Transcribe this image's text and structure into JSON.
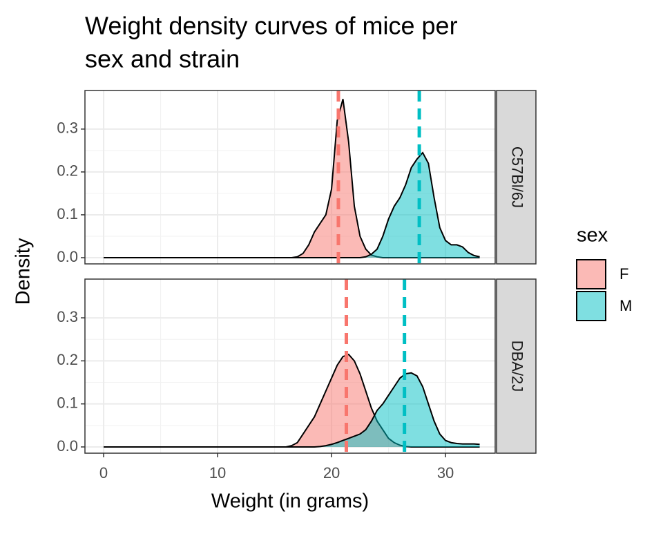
{
  "chart_data": {
    "type": "density",
    "title": [
      "Weight density curves of mice per",
      "sex and strain"
    ],
    "x_label": "Weight (in grams)",
    "y_label": "Density",
    "legend_title": "sex",
    "legend": [
      {
        "name": "F",
        "color": "#F8766D"
      },
      {
        "name": "M",
        "color": "#00BFC4"
      }
    ],
    "xlim": [
      -1.64,
      34.36
    ],
    "xticks": [
      0,
      10,
      20,
      30
    ],
    "ylim": [
      -0.0145,
      0.39
    ],
    "yticks": [
      {
        "value": 0,
        "label": "0.0"
      },
      0.1,
      0.2,
      0.3
    ],
    "grid": true,
    "x": [
      0,
      15,
      15.5,
      16,
      16.5,
      17,
      17.5,
      18,
      18.5,
      19,
      19.5,
      20,
      20.5,
      21,
      21.5,
      22,
      22.5,
      23,
      23.5,
      24,
      24.5,
      25,
      25.5,
      26,
      26.5,
      27,
      27.5,
      28,
      28.5,
      29,
      29.5,
      30,
      30.5,
      31,
      31.5,
      32,
      32.5,
      33
    ],
    "panels": [
      {
        "strip": "C57Bl/6J",
        "series": [
          {
            "name": "F",
            "color": "#F8766D",
            "mean": 20.6,
            "values": [
              0,
              0,
              0,
              0,
              0,
              0.002,
              0.01,
              0.03,
              0.06,
              0.08,
              0.1,
              0.16,
              0.32,
              0.37,
              0.27,
              0.12,
              0.05,
              0.02,
              0.006,
              0.002,
              0,
              0,
              0,
              0,
              0,
              0,
              0,
              0,
              0,
              0,
              0,
              0,
              0,
              0,
              0,
              0,
              0,
              0
            ]
          },
          {
            "name": "M",
            "color": "#00BFC4",
            "mean": 27.7,
            "values": [
              0,
              0,
              0,
              0,
              0,
              0,
              0,
              0,
              0,
              0,
              0,
              0,
              0,
              0,
              0,
              0,
              0,
              0.002,
              0.008,
              0.02,
              0.05,
              0.09,
              0.12,
              0.14,
              0.17,
              0.21,
              0.23,
              0.245,
              0.22,
              0.14,
              0.07,
              0.04,
              0.03,
              0.03,
              0.025,
              0.012,
              0.005,
              0.002
            ]
          }
        ]
      },
      {
        "strip": "DBA/2J",
        "series": [
          {
            "name": "F",
            "color": "#F8766D",
            "mean": 21.3,
            "values": [
              0,
              0,
              0,
              0,
              0.003,
              0.01,
              0.03,
              0.05,
              0.07,
              0.1,
              0.13,
              0.16,
              0.19,
              0.21,
              0.215,
              0.2,
              0.17,
              0.13,
              0.09,
              0.06,
              0.04,
              0.02,
              0.01,
              0.004,
              0.001,
              0,
              0,
              0,
              0,
              0,
              0,
              0,
              0,
              0,
              0,
              0,
              0,
              0
            ]
          },
          {
            "name": "M",
            "color": "#00BFC4",
            "mean": 26.4,
            "values": [
              0,
              0,
              0,
              0,
              0,
              0,
              0,
              0,
              0,
              0.001,
              0.003,
              0.006,
              0.01,
              0.015,
              0.02,
              0.025,
              0.03,
              0.04,
              0.06,
              0.085,
              0.1,
              0.12,
              0.14,
              0.16,
              0.17,
              0.172,
              0.165,
              0.14,
              0.1,
              0.06,
              0.03,
              0.015,
              0.01,
              0.008,
              0.007,
              0.007,
              0.007,
              0.006
            ]
          }
        ]
      }
    ]
  }
}
